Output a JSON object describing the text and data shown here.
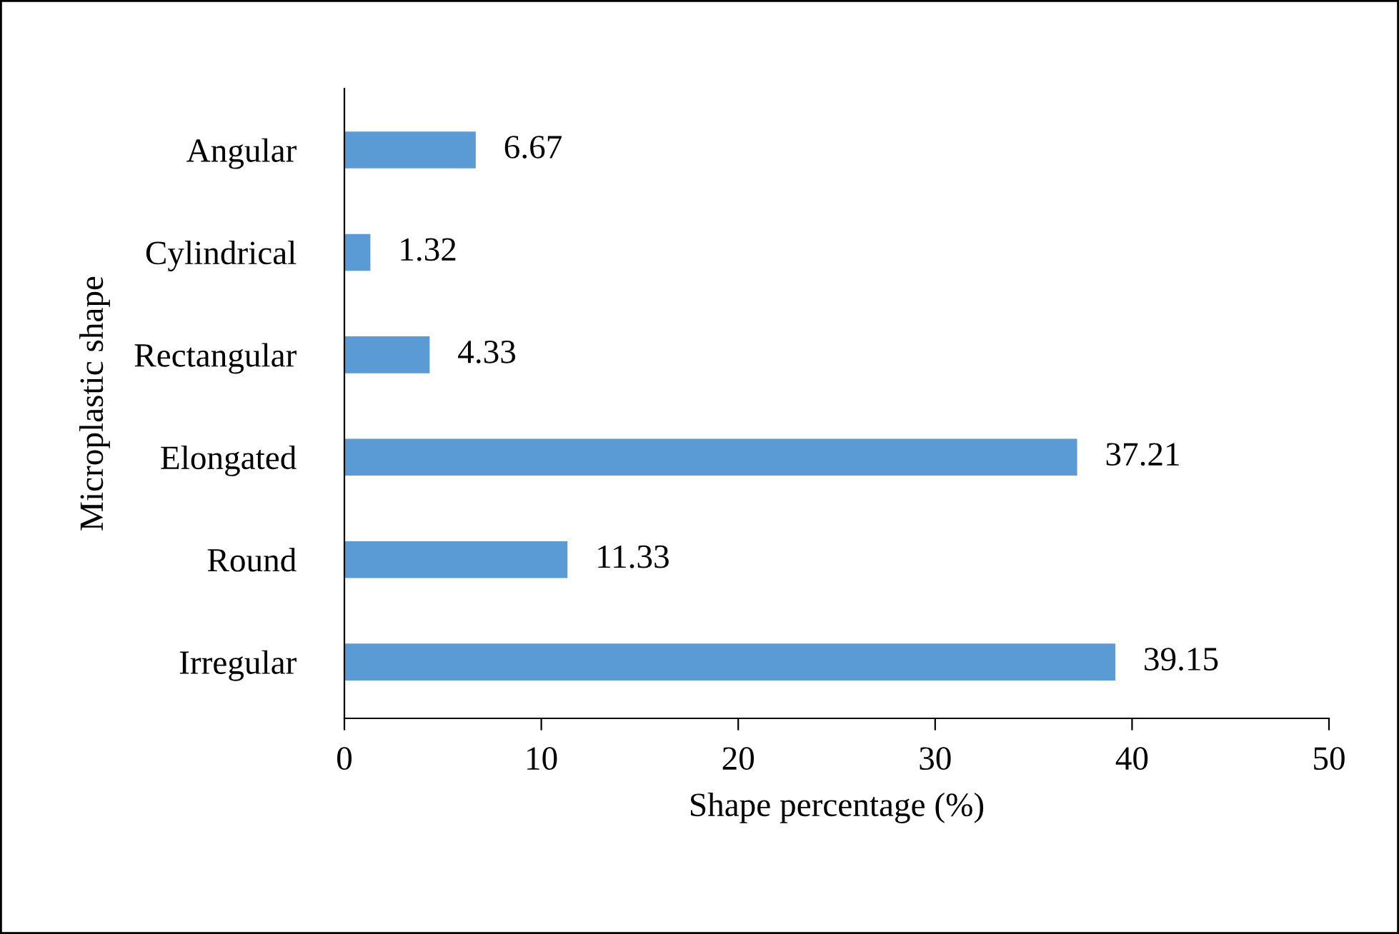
{
  "chart_data": {
    "type": "bar",
    "orientation": "horizontal",
    "xlabel": "Shape percentage (%)",
    "ylabel": "Microplastic shape",
    "categories": [
      "Angular",
      "Cylindrical",
      "Rectangular",
      "Elongated",
      "Round",
      "Irregular"
    ],
    "values": [
      6.67,
      1.32,
      4.33,
      37.21,
      11.33,
      39.15
    ],
    "color": "#5b9bd5",
    "data_labels": true,
    "xlim": [
      0,
      50
    ],
    "xticks": [
      0,
      10,
      20,
      30,
      40,
      50
    ],
    "grid": false,
    "legend": false
  }
}
